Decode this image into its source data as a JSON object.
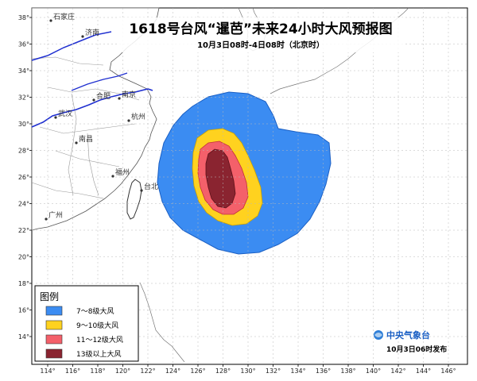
{
  "title": "1618号台风“暹芭”未来24小时大风预报图",
  "subtitle": "10月3日08时-4日08时（北京时）",
  "legend": {
    "title": "图例",
    "items": [
      {
        "label": "7～8级大风",
        "color": "#3b8cf2"
      },
      {
        "label": "9～10级大风",
        "color": "#ffd21f"
      },
      {
        "label": "11～12级大风",
        "color": "#f4606a"
      },
      {
        "label": "13级以上大风",
        "color": "#8a2430"
      }
    ]
  },
  "x_ticks": [
    "114°",
    "116°",
    "118°",
    "120°",
    "122°",
    "124°",
    "126°",
    "128°",
    "130°",
    "132°",
    "134°",
    "136°",
    "138°",
    "140°",
    "142°",
    "144°",
    "146°"
  ],
  "y_ticks": [
    "38°",
    "36°",
    "34°",
    "32°",
    "30°",
    "28°",
    "26°",
    "24°",
    "22°",
    "20°",
    "18°",
    "16°",
    "14°"
  ],
  "cities": [
    "石家庄",
    "济南",
    "合肥",
    "南京",
    "杭州",
    "武汉",
    "南昌",
    "福州",
    "台北",
    "广州"
  ],
  "logo_text": "中央气象台",
  "issue_time": "10月3日06时发布",
  "colors": {
    "land": "#ffffff",
    "sea": "#ffffff",
    "river": "#1f2fd0",
    "border": "#888888"
  }
}
